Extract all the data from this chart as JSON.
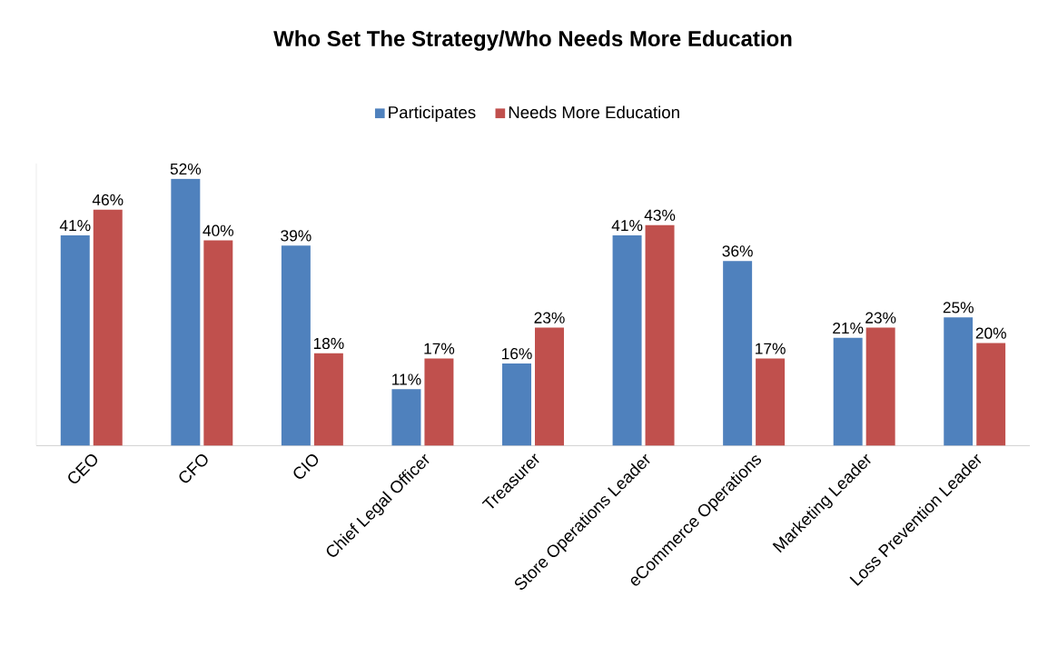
{
  "chart_data": {
    "type": "bar",
    "title": "Who Set The Strategy/Who Needs More Education",
    "categories": [
      "CEO",
      "CFO",
      "CIO",
      "Chief Legal Officer",
      "Treasurer",
      "Store Operations Leader",
      "eCommerce Operations",
      "Marketing Leader",
      "Loss Prevention Leader"
    ],
    "series": [
      {
        "name": "Participates",
        "color": "#4f81bd",
        "values": [
          41,
          52,
          39,
          11,
          16,
          41,
          36,
          21,
          25
        ],
        "value_labels": [
          "41%",
          "52%",
          "39%",
          "11%",
          "16%",
          "41%",
          "36%",
          "21%",
          "25%"
        ]
      },
      {
        "name": "Needs More Education",
        "color": "#c0504d",
        "values": [
          46,
          40,
          18,
          17,
          23,
          43,
          17,
          23,
          20
        ],
        "value_labels": [
          "46%",
          "40%",
          "18%",
          "17%",
          "23%",
          "43%",
          "17%",
          "23%",
          "20%"
        ]
      }
    ],
    "ylim": [
      0,
      55
    ],
    "tick_labels": "x",
    "legend": "top"
  }
}
